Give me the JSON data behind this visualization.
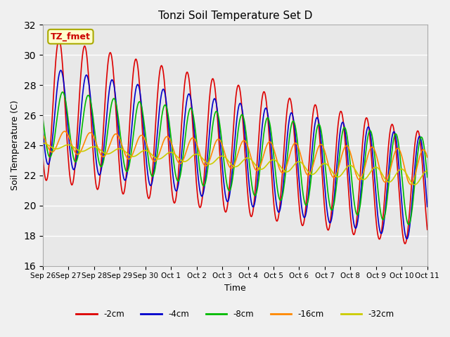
{
  "title": "Tonzi Soil Temperature Set D",
  "xlabel": "Time",
  "ylabel": "Soil Temperature (C)",
  "ylim": [
    16,
    32
  ],
  "yticks": [
    16,
    18,
    20,
    22,
    24,
    26,
    28,
    30,
    32
  ],
  "xtick_labels": [
    "Sep 26",
    "Sep 27",
    "Sep 28",
    "Sep 29",
    "Sep 30",
    "Oct 1",
    "Oct 2",
    "Oct 3",
    "Oct 4",
    "Oct 5",
    "Oct 6",
    "Oct 7",
    "Oct 8",
    "Oct 9",
    "Oct 10",
    "Oct 11"
  ],
  "series_colors": [
    "#dd0000",
    "#0000cc",
    "#00bb00",
    "#ff8800",
    "#cccc00"
  ],
  "series_labels": [
    "-2cm",
    "-4cm",
    "-8cm",
    "-16cm",
    "-32cm"
  ],
  "legend_label": "TZ_fmet",
  "legend_bg": "#ffffcc",
  "legend_border": "#aaaa00",
  "plot_bg": "#e8e8e8",
  "fig_bg": "#f0f0f0",
  "num_days": 15,
  "points_per_day": 48,
  "red_params": [
    26.5,
    21.0,
    4.8,
    3.8,
    0.38
  ],
  "blue_params": [
    26.0,
    21.0,
    3.2,
    3.5,
    0.45
  ],
  "green_params": [
    25.5,
    21.5,
    2.2,
    3.0,
    0.52
  ],
  "orange_params": [
    24.3,
    22.5,
    0.7,
    1.2,
    0.6
  ],
  "yellow_params": [
    24.0,
    21.8,
    0.15,
    0.5,
    0.75
  ]
}
